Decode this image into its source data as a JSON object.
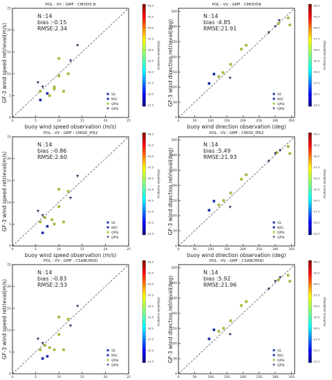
{
  "panels_common": {
    "colorbar_label": "incidence angle(deg)",
    "colorbar_ticks": [
      "45.0",
      "42.5",
      "40.0",
      "37.5",
      "35.0",
      "32.5",
      "30.0",
      "27.5",
      "25.0",
      "22.5"
    ],
    "legend": [
      "SS",
      "NSC",
      "QPSI",
      "QPSI"
    ],
    "stats_prefix": {
      "n": "N :",
      "bias": "bias :",
      "rmse": "RMSE:"
    }
  },
  "chart_data": [
    {
      "type": "scatter",
      "panel": "speed-cmod5n",
      "title": "POL : VV ; GMF : CMOD5.N",
      "xlabel": "buoy wind speed observation (m/s)",
      "ylabel": "GF-3 wind speed retrieval(m/s)",
      "xlim": [
        0,
        25
      ],
      "ylim": [
        0,
        25
      ],
      "xticks": [
        "0",
        "5",
        "10",
        "15",
        "20",
        "25"
      ],
      "yticks": [
        "0",
        "5",
        "10",
        "15",
        "20",
        "25"
      ],
      "stats": {
        "n": "14",
        "bias": "-0.15",
        "rmse": "2.34"
      },
      "points": [
        {
          "x": 6.0,
          "y": 4.0,
          "series": "SS"
        },
        {
          "x": 7.5,
          "y": 5.5,
          "series": "NSC"
        },
        {
          "x": 6.0,
          "y": 6.0,
          "series": "QPSI-a"
        },
        {
          "x": 8.0,
          "y": 5.0,
          "series": "QPSI-a"
        },
        {
          "x": 9.0,
          "y": 6.5,
          "series": "QPSI-a"
        },
        {
          "x": 11.0,
          "y": 6.0,
          "series": "QPSI-a"
        },
        {
          "x": 12.0,
          "y": 10.0,
          "series": "QPSI-a"
        },
        {
          "x": 10.0,
          "y": 9.5,
          "series": "QPSI-a"
        },
        {
          "x": 10.0,
          "y": 13.5,
          "series": "QPSI-a"
        },
        {
          "x": 9.0,
          "y": 7.0,
          "series": "QPSI-a"
        },
        {
          "x": 5.5,
          "y": 8.0,
          "series": "QPSI-b"
        },
        {
          "x": 6.5,
          "y": 7.0,
          "series": "QPSI-b"
        },
        {
          "x": 12.5,
          "y": 13.0,
          "series": "QPSI-b"
        },
        {
          "x": 14.0,
          "y": 16.5,
          "series": "QPSI-b"
        }
      ]
    },
    {
      "type": "scatter",
      "panel": "dir-cmod5n",
      "title": "POL : VV ; GMF : CMOD5N",
      "xlabel": "buoy wind direction observation (deg)",
      "ylabel": "GF-3 wind direction retrieval(deg)",
      "xlim": [
        0,
        360
      ],
      "ylim": [
        0,
        360
      ],
      "xticks": [
        "0",
        "50",
        "100",
        "150",
        "200",
        "250",
        "300",
        "350"
      ],
      "yticks": [
        "0",
        "50",
        "100",
        "150",
        "200",
        "250",
        "300",
        "350"
      ],
      "stats": {
        "n": "14",
        "bias": "4.85",
        "rmse": "21.91"
      },
      "points": [
        {
          "x": 95,
          "y": 112,
          "series": "SS"
        },
        {
          "x": 110,
          "y": 143,
          "series": "NSC"
        },
        {
          "x": 125,
          "y": 135,
          "series": "QPSI-a"
        },
        {
          "x": 138,
          "y": 148,
          "series": "QPSI-a"
        },
        {
          "x": 162,
          "y": 175,
          "series": "QPSI-a"
        },
        {
          "x": 195,
          "y": 225,
          "series": "QPSI-a"
        },
        {
          "x": 210,
          "y": 238,
          "series": "QPSI-a"
        },
        {
          "x": 310,
          "y": 310,
          "series": "QPSI-a"
        },
        {
          "x": 340,
          "y": 328,
          "series": "QPSI-a"
        },
        {
          "x": 345,
          "y": 305,
          "series": "QPSI-a"
        },
        {
          "x": 160,
          "y": 130,
          "series": "QPSI-b"
        },
        {
          "x": 280,
          "y": 280,
          "series": "QPSI-b"
        },
        {
          "x": 300,
          "y": 300,
          "series": "QPSI-b"
        },
        {
          "x": 312,
          "y": 320,
          "series": "QPSI-b"
        }
      ]
    },
    {
      "type": "scatter",
      "panel": "speed-cmodifr2",
      "title": "POL : VV ; GMF : CMOD_IFR2",
      "xlabel": "buoy wind speed observation (m/s)",
      "ylabel": "GF-3 wind speed retrieval(m/s)",
      "xlim": [
        0,
        25
      ],
      "ylim": [
        0,
        25
      ],
      "xticks": [
        "0",
        "5",
        "10",
        "15",
        "20",
        "25"
      ],
      "yticks": [
        "0",
        "5",
        "10",
        "15",
        "20",
        "25"
      ],
      "stats": {
        "n": "14",
        "bias": "-0.86",
        "rmse": "2.60"
      },
      "points": [
        {
          "x": 6.5,
          "y": 3.0,
          "series": "SS"
        },
        {
          "x": 7.5,
          "y": 4.5,
          "series": "NSC"
        },
        {
          "x": 6.0,
          "y": 5.5,
          "series": "QPSI-a"
        },
        {
          "x": 8.5,
          "y": 6.0,
          "series": "QPSI-a"
        },
        {
          "x": 9.0,
          "y": 5.0,
          "series": "QPSI-a"
        },
        {
          "x": 11.0,
          "y": 5.5,
          "series": "QPSI-a"
        },
        {
          "x": 12.0,
          "y": 12.5,
          "series": "QPSI-a"
        },
        {
          "x": 10.0,
          "y": 9.0,
          "series": "QPSI-a"
        },
        {
          "x": 10.0,
          "y": 13.0,
          "series": "QPSI-a"
        },
        {
          "x": 7.0,
          "y": 6.5,
          "series": "QPSI-a"
        },
        {
          "x": 5.5,
          "y": 8.0,
          "series": "QPSI-b"
        },
        {
          "x": 6.5,
          "y": 7.0,
          "series": "QPSI-b"
        },
        {
          "x": 12.5,
          "y": 11.0,
          "series": "QPSI-b"
        },
        {
          "x": 14.0,
          "y": 16.0,
          "series": "QPSI-b"
        }
      ]
    },
    {
      "type": "scatter",
      "panel": "dir-cmodifr2",
      "title": "POL : VV ; GMF : CMOD_IFR2",
      "xlabel": "buoy wind direction observation (deg)",
      "ylabel": "GF-3 wind direction retrieval(deg)",
      "xlim": [
        0,
        360
      ],
      "ylim": [
        0,
        360
      ],
      "xticks": [
        "0",
        "50",
        "100",
        "150",
        "200",
        "250",
        "300",
        "350"
      ],
      "yticks": [
        "0",
        "50",
        "100",
        "150",
        "200",
        "250",
        "300",
        "350"
      ],
      "stats": {
        "n": "14",
        "bias": "5.49",
        "rmse": "21.93"
      },
      "points": [
        {
          "x": 95,
          "y": 118,
          "series": "SS"
        },
        {
          "x": 110,
          "y": 148,
          "series": "NSC"
        },
        {
          "x": 125,
          "y": 135,
          "series": "QPSI-a"
        },
        {
          "x": 140,
          "y": 150,
          "series": "QPSI-a"
        },
        {
          "x": 162,
          "y": 175,
          "series": "QPSI-a"
        },
        {
          "x": 195,
          "y": 220,
          "series": "QPSI-a"
        },
        {
          "x": 210,
          "y": 235,
          "series": "QPSI-a"
        },
        {
          "x": 305,
          "y": 308,
          "series": "QPSI-a"
        },
        {
          "x": 340,
          "y": 328,
          "series": "QPSI-a"
        },
        {
          "x": 345,
          "y": 305,
          "series": "QPSI-a"
        },
        {
          "x": 160,
          "y": 128,
          "series": "QPSI-b"
        },
        {
          "x": 280,
          "y": 280,
          "series": "QPSI-b"
        },
        {
          "x": 300,
          "y": 305,
          "series": "QPSI-b"
        },
        {
          "x": 315,
          "y": 315,
          "series": "QPSI-b"
        }
      ]
    },
    {
      "type": "scatter",
      "panel": "speed-csarcmod",
      "title": "POL : VV ; GMF : CSARCMOD",
      "xlabel": "buoy wind speed observation (m/s)",
      "ylabel": "GF-3 wind speed retrieval(m/s)",
      "xlim": [
        0,
        25
      ],
      "ylim": [
        0,
        25
      ],
      "xticks": [
        "0",
        "5",
        "10",
        "15",
        "20",
        "25"
      ],
      "yticks": [
        "0",
        "5",
        "10",
        "15",
        "20",
        "25"
      ],
      "stats": {
        "n": "14",
        "bias": "-0.83",
        "rmse": "2.53"
      },
      "points": [
        {
          "x": 6.5,
          "y": 3.5,
          "series": "SS"
        },
        {
          "x": 7.5,
          "y": 4.0,
          "series": "NSC"
        },
        {
          "x": 6.0,
          "y": 5.5,
          "series": "QPSI-a"
        },
        {
          "x": 8.0,
          "y": 6.0,
          "series": "QPSI-a"
        },
        {
          "x": 9.0,
          "y": 5.5,
          "series": "QPSI-a"
        },
        {
          "x": 11.0,
          "y": 5.5,
          "series": "QPSI-a"
        },
        {
          "x": 12.0,
          "y": 12.5,
          "series": "QPSI-a"
        },
        {
          "x": 10.0,
          "y": 9.0,
          "series": "QPSI-a"
        },
        {
          "x": 10.0,
          "y": 13.0,
          "series": "QPSI-a"
        },
        {
          "x": 7.0,
          "y": 6.5,
          "series": "QPSI-a"
        },
        {
          "x": 5.5,
          "y": 8.0,
          "series": "QPSI-b"
        },
        {
          "x": 6.5,
          "y": 7.0,
          "series": "QPSI-b"
        },
        {
          "x": 12.5,
          "y": 11.0,
          "series": "QPSI-b"
        },
        {
          "x": 14.0,
          "y": 15.5,
          "series": "QPSI-b"
        }
      ]
    },
    {
      "type": "scatter",
      "panel": "dir-csarcmod",
      "title": "POL : VV ; GMF : CSARCMOD",
      "xlabel": "buoy wind direction observation (deg)",
      "ylabel": "GF-3 wind direction retrieval(deg)",
      "xlim": [
        0,
        360
      ],
      "ylim": [
        0,
        360
      ],
      "xticks": [
        "0",
        "50",
        "100",
        "150",
        "200",
        "250",
        "300",
        "350"
      ],
      "yticks": [
        "0",
        "50",
        "100",
        "150",
        "200",
        "250",
        "300",
        "350"
      ],
      "stats": {
        "n": "14",
        "bias": "5.92",
        "rmse": "21.96"
      },
      "points": [
        {
          "x": 95,
          "y": 115,
          "series": "SS"
        },
        {
          "x": 110,
          "y": 145,
          "series": "NSC"
        },
        {
          "x": 125,
          "y": 140,
          "series": "QPSI-a"
        },
        {
          "x": 140,
          "y": 150,
          "series": "QPSI-a"
        },
        {
          "x": 162,
          "y": 175,
          "series": "QPSI-a"
        },
        {
          "x": 195,
          "y": 225,
          "series": "QPSI-a"
        },
        {
          "x": 210,
          "y": 238,
          "series": "QPSI-a"
        },
        {
          "x": 310,
          "y": 310,
          "series": "QPSI-a"
        },
        {
          "x": 340,
          "y": 325,
          "series": "QPSI-a"
        },
        {
          "x": 345,
          "y": 305,
          "series": "QPSI-a"
        },
        {
          "x": 160,
          "y": 130,
          "series": "QPSI-b"
        },
        {
          "x": 280,
          "y": 280,
          "series": "QPSI-b"
        },
        {
          "x": 300,
          "y": 305,
          "series": "QPSI-b"
        },
        {
          "x": 315,
          "y": 318,
          "series": "QPSI-b"
        }
      ]
    }
  ],
  "series_styles": {
    "SS": {
      "shape": "square",
      "color": "#1a2aa8"
    },
    "NSC": {
      "shape": "square",
      "color": "#1a2aa8"
    },
    "QPSI-a": {
      "shape": "circle",
      "color": "#a8c838"
    },
    "QPSI-b": {
      "shape": "triangle-down",
      "color": "#303060"
    }
  },
  "colors": {
    "axis": "#000000",
    "diagonal": "#555555",
    "text": "#222222"
  }
}
